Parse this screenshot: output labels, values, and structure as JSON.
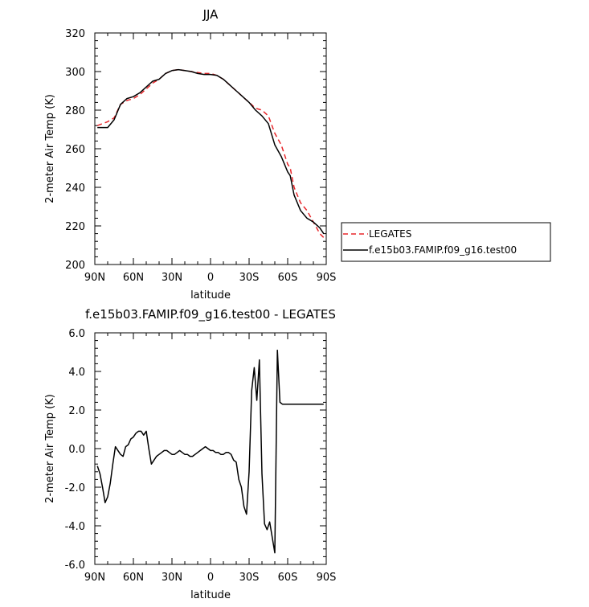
{
  "chart_data": [
    {
      "type": "line",
      "title": "JJA",
      "xlabel": "latitude",
      "ylabel": "2-meter Air Temp (K)",
      "xlim": [
        90,
        -90
      ],
      "ylim": [
        200,
        320
      ],
      "x_ticks": [
        "90N",
        "60N",
        "30N",
        "0",
        "30S",
        "60S",
        "90S"
      ],
      "y_ticks": [
        "200",
        "220",
        "240",
        "260",
        "280",
        "300",
        "320"
      ],
      "legend_position": "right",
      "series": [
        {
          "name": "LEGATES",
          "color": "#e8262a",
          "dash": "dashed",
          "x": [
            88,
            80,
            75,
            70,
            65,
            60,
            55,
            50,
            45,
            40,
            35,
            30,
            25,
            20,
            15,
            10,
            5,
            0,
            -5,
            -10,
            -15,
            -20,
            -25,
            -30,
            -35,
            -40,
            -45,
            -50,
            -55,
            -60,
            -62,
            -65,
            -70,
            -75,
            -80,
            -85,
            -88
          ],
          "y": [
            272,
            274,
            276,
            283,
            285,
            286,
            288,
            291,
            294,
            296,
            299,
            300.5,
            301,
            300.5,
            300,
            299.5,
            299,
            299,
            298,
            296,
            293,
            290,
            287,
            284,
            281,
            280,
            277,
            268,
            262,
            252,
            250,
            240,
            232,
            228,
            222,
            216,
            214
          ]
        },
        {
          "name": "f.e15b03.FAMIP.f09_g16.test00",
          "color": "#000000",
          "dash": "solid",
          "x": [
            88,
            80,
            75,
            70,
            65,
            60,
            55,
            50,
            45,
            40,
            35,
            30,
            25,
            20,
            15,
            10,
            5,
            0,
            -5,
            -10,
            -15,
            -20,
            -25,
            -30,
            -35,
            -40,
            -45,
            -50,
            -55,
            -60,
            -62,
            -65,
            -70,
            -75,
            -80,
            -85,
            -88
          ],
          "y": [
            271,
            271,
            275,
            283,
            286,
            287,
            289,
            292,
            295,
            296,
            299,
            300.5,
            301,
            300.5,
            300,
            299,
            298.5,
            298.5,
            298,
            296,
            293,
            290,
            287,
            284,
            280,
            277,
            273,
            262,
            256,
            248,
            246,
            236,
            228,
            224,
            222,
            219,
            216
          ]
        }
      ]
    },
    {
      "type": "line",
      "title": "f.e15b03.FAMIP.f09_g16.test00 - LEGATES",
      "xlabel": "latitude",
      "ylabel": "2-meter Air Temp (K)",
      "xlim": [
        90,
        -90
      ],
      "ylim": [
        -6.0,
        6.0
      ],
      "x_ticks": [
        "90N",
        "60N",
        "30N",
        "0",
        "30S",
        "60S",
        "90S"
      ],
      "y_ticks": [
        "-6.0",
        "-4.0",
        "-2.0",
        "0.0",
        "2.0",
        "4.0",
        "6.0"
      ],
      "series": [
        {
          "color": "#000000",
          "x": [
            88,
            86,
            84,
            82,
            80,
            78,
            76,
            74,
            72,
            70,
            68,
            66,
            64,
            62,
            60,
            58,
            56,
            54,
            52,
            50,
            48,
            46,
            44,
            42,
            40,
            38,
            36,
            34,
            32,
            30,
            28,
            26,
            24,
            22,
            20,
            18,
            16,
            14,
            12,
            10,
            8,
            6,
            4,
            2,
            0,
            -2,
            -4,
            -6,
            -8,
            -10,
            -12,
            -14,
            -16,
            -18,
            -20,
            -22,
            -24,
            -26,
            -28,
            -30,
            -32,
            -34,
            -36,
            -38,
            -40,
            -42,
            -44,
            -46,
            -48,
            -50,
            -52,
            -54,
            -56,
            -58,
            -60,
            -62,
            -64,
            -66,
            -68,
            -70,
            -72,
            -74,
            -76,
            -78,
            -80,
            -82,
            -84,
            -86,
            -88
          ],
          "y": [
            -0.9,
            -1.3,
            -2.0,
            -2.8,
            -2.5,
            -1.8,
            -0.8,
            0.1,
            -0.1,
            -0.3,
            -0.4,
            0.1,
            0.2,
            0.5,
            0.6,
            0.8,
            0.9,
            0.9,
            0.7,
            0.9,
            0.0,
            -0.8,
            -0.6,
            -0.4,
            -0.3,
            -0.2,
            -0.1,
            -0.1,
            -0.2,
            -0.3,
            -0.3,
            -0.2,
            -0.1,
            -0.2,
            -0.3,
            -0.3,
            -0.4,
            -0.4,
            -0.3,
            -0.2,
            -0.1,
            0.0,
            0.1,
            0.0,
            -0.1,
            -0.1,
            -0.2,
            -0.2,
            -0.3,
            -0.3,
            -0.2,
            -0.2,
            -0.3,
            -0.6,
            -0.7,
            -1.6,
            -2.0,
            -3.0,
            -3.4,
            -1.2,
            3.0,
            4.2,
            2.5,
            4.6,
            -1.3,
            -3.9,
            -4.2,
            -3.8,
            -4.6,
            -5.4,
            5.1,
            2.4,
            2.3,
            2.3,
            2.3,
            2.3,
            2.3,
            2.3,
            2.3,
            2.3,
            2.3,
            2.3,
            2.3,
            2.3,
            2.3,
            2.3,
            2.3,
            2.3,
            2.3
          ]
        }
      ]
    }
  ]
}
